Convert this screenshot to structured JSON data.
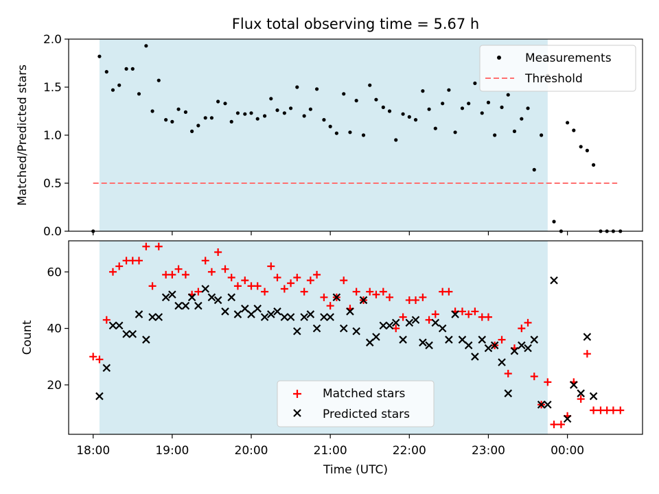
{
  "figure": {
    "title": "Flux total observing time = 5.67 h",
    "xlabel": "Time (UTC)",
    "x_ticks": [
      "18:00",
      "19:00",
      "20:00",
      "21:00",
      "22:00",
      "23:00",
      "00:00"
    ],
    "x_tick_hours": [
      18,
      19,
      20,
      21,
      22,
      23,
      24
    ],
    "xlim_hours": [
      17.69,
      24.95
    ],
    "shaded_span_hours": [
      18.08,
      23.75
    ]
  },
  "colors": {
    "shade": "#add8e6",
    "measurement": "#000000",
    "threshold": "#ff6f6f",
    "matched": "#ff0000",
    "predicted": "#000000"
  },
  "chart_data": [
    {
      "type": "scatter",
      "panel": "top",
      "ylabel": "Matched/Predicted stars",
      "ylim": [
        0,
        2.0
      ],
      "y_ticks": [
        "0.0",
        "0.5",
        "1.0",
        "1.5",
        "2.0"
      ],
      "y_tick_values": [
        0,
        0.5,
        1.0,
        1.5,
        2.0
      ],
      "legend": {
        "placement": "upper right",
        "entries": [
          "Measurements",
          "Threshold"
        ]
      },
      "threshold": {
        "name": "Threshold",
        "y": 0.5,
        "x_range_hours": [
          18.0,
          24.63
        ]
      },
      "series": [
        {
          "name": "Measurements",
          "points": [
            [
              18.0,
              0.0
            ],
            [
              18.08,
              1.82
            ],
            [
              18.17,
              1.66
            ],
            [
              18.25,
              1.47
            ],
            [
              18.33,
              1.52
            ],
            [
              18.42,
              1.69
            ],
            [
              18.5,
              1.69
            ],
            [
              18.58,
              1.43
            ],
            [
              18.67,
              1.93
            ],
            [
              18.75,
              1.25
            ],
            [
              18.83,
              1.57
            ],
            [
              18.92,
              1.16
            ],
            [
              19.0,
              1.14
            ],
            [
              19.08,
              1.27
            ],
            [
              19.17,
              1.24
            ],
            [
              19.25,
              1.04
            ],
            [
              19.33,
              1.1
            ],
            [
              19.42,
              1.18
            ],
            [
              19.5,
              1.18
            ],
            [
              19.58,
              1.35
            ],
            [
              19.67,
              1.33
            ],
            [
              19.75,
              1.14
            ],
            [
              19.83,
              1.23
            ],
            [
              19.92,
              1.22
            ],
            [
              20.0,
              1.23
            ],
            [
              20.08,
              1.17
            ],
            [
              20.17,
              1.2
            ],
            [
              20.25,
              1.38
            ],
            [
              20.33,
              1.26
            ],
            [
              20.42,
              1.23
            ],
            [
              20.5,
              1.28
            ],
            [
              20.58,
              1.5
            ],
            [
              20.67,
              1.2
            ],
            [
              20.75,
              1.27
            ],
            [
              20.83,
              1.48
            ],
            [
              20.92,
              1.16
            ],
            [
              21.0,
              1.09
            ],
            [
              21.08,
              1.02
            ],
            [
              21.17,
              1.43
            ],
            [
              21.25,
              1.03
            ],
            [
              21.33,
              1.36
            ],
            [
              21.42,
              1.0
            ],
            [
              21.5,
              1.52
            ],
            [
              21.58,
              1.37
            ],
            [
              21.67,
              1.29
            ],
            [
              21.75,
              1.25
            ],
            [
              21.83,
              0.95
            ],
            [
              21.92,
              1.22
            ],
            [
              22.0,
              1.19
            ],
            [
              22.08,
              1.16
            ],
            [
              22.17,
              1.46
            ],
            [
              22.25,
              1.27
            ],
            [
              22.33,
              1.07
            ],
            [
              22.42,
              1.33
            ],
            [
              22.5,
              1.47
            ],
            [
              22.58,
              1.03
            ],
            [
              22.67,
              1.28
            ],
            [
              22.75,
              1.33
            ],
            [
              22.83,
              1.54
            ],
            [
              22.92,
              1.23
            ],
            [
              23.0,
              1.34
            ],
            [
              23.08,
              1.0
            ],
            [
              23.17,
              1.29
            ],
            [
              23.25,
              1.42
            ],
            [
              23.33,
              1.04
            ],
            [
              23.42,
              1.17
            ],
            [
              23.5,
              1.28
            ],
            [
              23.58,
              0.64
            ],
            [
              23.67,
              1.0
            ],
            [
              23.75,
              1.62
            ],
            [
              23.83,
              0.1
            ],
            [
              23.92,
              0.0
            ],
            [
              24.0,
              1.13
            ],
            [
              24.08,
              1.05
            ],
            [
              24.17,
              0.88
            ],
            [
              24.25,
              0.84
            ],
            [
              24.33,
              0.69
            ],
            [
              24.42,
              0.0
            ],
            [
              24.5,
              0.0
            ],
            [
              24.58,
              0.0
            ],
            [
              24.67,
              0.0
            ]
          ]
        }
      ]
    },
    {
      "type": "scatter",
      "panel": "bottom",
      "ylabel": "Count",
      "ylim": [
        2.5,
        71
      ],
      "y_ticks": [
        "20",
        "40",
        "60"
      ],
      "y_tick_values": [
        20,
        40,
        60
      ],
      "legend": {
        "placement": "lower center",
        "entries": [
          "Matched stars",
          "Predicted stars"
        ]
      },
      "series": [
        {
          "name": "Matched stars",
          "marker": "plus",
          "points": [
            [
              18.0,
              30
            ],
            [
              18.08,
              29
            ],
            [
              18.17,
              43
            ],
            [
              18.25,
              60
            ],
            [
              18.33,
              62
            ],
            [
              18.42,
              64
            ],
            [
              18.5,
              64
            ],
            [
              18.58,
              64
            ],
            [
              18.67,
              69
            ],
            [
              18.75,
              55
            ],
            [
              18.83,
              69
            ],
            [
              18.92,
              59
            ],
            [
              19.0,
              59
            ],
            [
              19.08,
              61
            ],
            [
              19.17,
              59
            ],
            [
              19.25,
              52
            ],
            [
              19.33,
              53
            ],
            [
              19.42,
              64
            ],
            [
              19.5,
              60
            ],
            [
              19.58,
              67
            ],
            [
              19.67,
              61
            ],
            [
              19.75,
              58
            ],
            [
              19.83,
              55
            ],
            [
              19.92,
              57
            ],
            [
              20.0,
              55
            ],
            [
              20.08,
              55
            ],
            [
              20.17,
              53
            ],
            [
              20.25,
              62
            ],
            [
              20.33,
              58
            ],
            [
              20.42,
              54
            ],
            [
              20.5,
              56
            ],
            [
              20.58,
              58
            ],
            [
              20.67,
              53
            ],
            [
              20.75,
              57
            ],
            [
              20.83,
              59
            ],
            [
              20.92,
              51
            ],
            [
              21.0,
              48
            ],
            [
              21.08,
              51
            ],
            [
              21.17,
              57
            ],
            [
              21.25,
              47
            ],
            [
              21.33,
              53
            ],
            [
              21.42,
              50
            ],
            [
              21.5,
              53
            ],
            [
              21.58,
              52
            ],
            [
              21.67,
              53
            ],
            [
              21.75,
              51
            ],
            [
              21.83,
              40
            ],
            [
              21.92,
              44
            ],
            [
              22.0,
              50
            ],
            [
              22.08,
              50
            ],
            [
              22.17,
              51
            ],
            [
              22.25,
              43
            ],
            [
              22.33,
              45
            ],
            [
              22.42,
              53
            ],
            [
              22.5,
              53
            ],
            [
              22.58,
              46
            ],
            [
              22.67,
              46
            ],
            [
              22.75,
              45
            ],
            [
              22.83,
              46
            ],
            [
              22.92,
              44
            ],
            [
              23.0,
              44
            ],
            [
              23.08,
              34
            ],
            [
              23.17,
              36
            ],
            [
              23.25,
              24
            ],
            [
              23.33,
              33
            ],
            [
              23.42,
              40
            ],
            [
              23.5,
              42
            ],
            [
              23.58,
              23
            ],
            [
              23.67,
              13
            ],
            [
              23.75,
              21
            ],
            [
              23.83,
              6
            ],
            [
              23.92,
              6
            ],
            [
              24.0,
              9
            ],
            [
              24.08,
              21
            ],
            [
              24.17,
              15
            ],
            [
              24.25,
              31
            ],
            [
              24.33,
              11
            ],
            [
              24.42,
              11
            ],
            [
              24.5,
              11
            ],
            [
              24.58,
              11
            ],
            [
              24.67,
              11
            ]
          ]
        },
        {
          "name": "Predicted stars",
          "marker": "x",
          "points": [
            [
              18.08,
              16
            ],
            [
              18.17,
              26
            ],
            [
              18.25,
              41
            ],
            [
              18.33,
              41
            ],
            [
              18.42,
              38
            ],
            [
              18.5,
              38
            ],
            [
              18.58,
              45
            ],
            [
              18.67,
              36
            ],
            [
              18.75,
              44
            ],
            [
              18.83,
              44
            ],
            [
              18.92,
              51
            ],
            [
              19.0,
              52
            ],
            [
              19.08,
              48
            ],
            [
              19.17,
              48
            ],
            [
              19.25,
              51
            ],
            [
              19.33,
              48
            ],
            [
              19.42,
              54
            ],
            [
              19.5,
              51
            ],
            [
              19.58,
              50
            ],
            [
              19.67,
              46
            ],
            [
              19.75,
              51
            ],
            [
              19.83,
              45
            ],
            [
              19.92,
              47
            ],
            [
              20.0,
              45
            ],
            [
              20.08,
              47
            ],
            [
              20.17,
              44
            ],
            [
              20.25,
              45
            ],
            [
              20.33,
              46
            ],
            [
              20.42,
              44
            ],
            [
              20.5,
              44
            ],
            [
              20.58,
              39
            ],
            [
              20.67,
              44
            ],
            [
              20.75,
              45
            ],
            [
              20.83,
              40
            ],
            [
              20.92,
              44
            ],
            [
              21.0,
              44
            ],
            [
              21.08,
              51
            ],
            [
              21.17,
              40
            ],
            [
              21.25,
              46
            ],
            [
              21.33,
              39
            ],
            [
              21.42,
              50
            ],
            [
              21.5,
              35
            ],
            [
              21.58,
              37
            ],
            [
              21.67,
              41
            ],
            [
              21.75,
              41
            ],
            [
              21.83,
              42
            ],
            [
              21.92,
              36
            ],
            [
              22.0,
              42
            ],
            [
              22.08,
              43
            ],
            [
              22.17,
              35
            ],
            [
              22.25,
              34
            ],
            [
              22.33,
              42
            ],
            [
              22.42,
              40
            ],
            [
              22.5,
              36
            ],
            [
              22.58,
              45
            ],
            [
              22.67,
              36
            ],
            [
              22.75,
              34
            ],
            [
              22.83,
              30
            ],
            [
              22.92,
              36
            ],
            [
              23.0,
              33
            ],
            [
              23.08,
              34
            ],
            [
              23.17,
              28
            ],
            [
              23.25,
              17
            ],
            [
              23.33,
              32
            ],
            [
              23.42,
              34
            ],
            [
              23.5,
              33
            ],
            [
              23.58,
              36
            ],
            [
              23.67,
              13
            ],
            [
              23.75,
              13
            ],
            [
              23.83,
              57
            ],
            [
              24.0,
              8
            ],
            [
              24.08,
              20
            ],
            [
              24.17,
              17
            ],
            [
              24.25,
              37
            ],
            [
              24.33,
              16
            ]
          ]
        }
      ]
    }
  ]
}
